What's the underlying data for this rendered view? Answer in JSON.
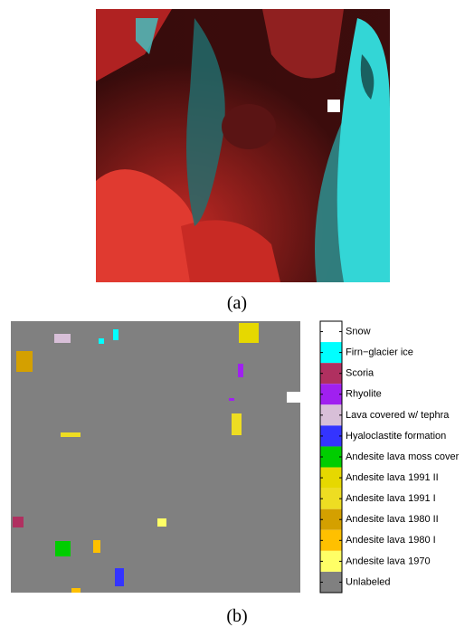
{
  "captions": [
    "(a)",
    "(b)"
  ],
  "legend": [
    {
      "name": "Snow",
      "color": "#ffffff"
    },
    {
      "name": "Firn−glacier ice",
      "color": "#00ffff"
    },
    {
      "name": "Scoria",
      "color": "#b03060"
    },
    {
      "name": "Rhyolite",
      "color": "#a020f0"
    },
    {
      "name": "Lava covered w/ tephra",
      "color": "#d8bfd8"
    },
    {
      "name": "Hyaloclastite formation",
      "color": "#3434ff"
    },
    {
      "name": "Andesite lava moss cover",
      "color": "#00cd00"
    },
    {
      "name": "Andesite lava 1991 II",
      "color": "#e6d800"
    },
    {
      "name": "Andesite lava 1991 I",
      "color": "#eedd22"
    },
    {
      "name": "Andesite lava 1980 II",
      "color": "#d4a000"
    },
    {
      "name": "Andesite lava 1980 I",
      "color": "#ffc000"
    },
    {
      "name": "Andesite lava 1970",
      "color": "#ffff66"
    },
    {
      "name": "Unlabeled",
      "color": "#808080"
    }
  ]
}
